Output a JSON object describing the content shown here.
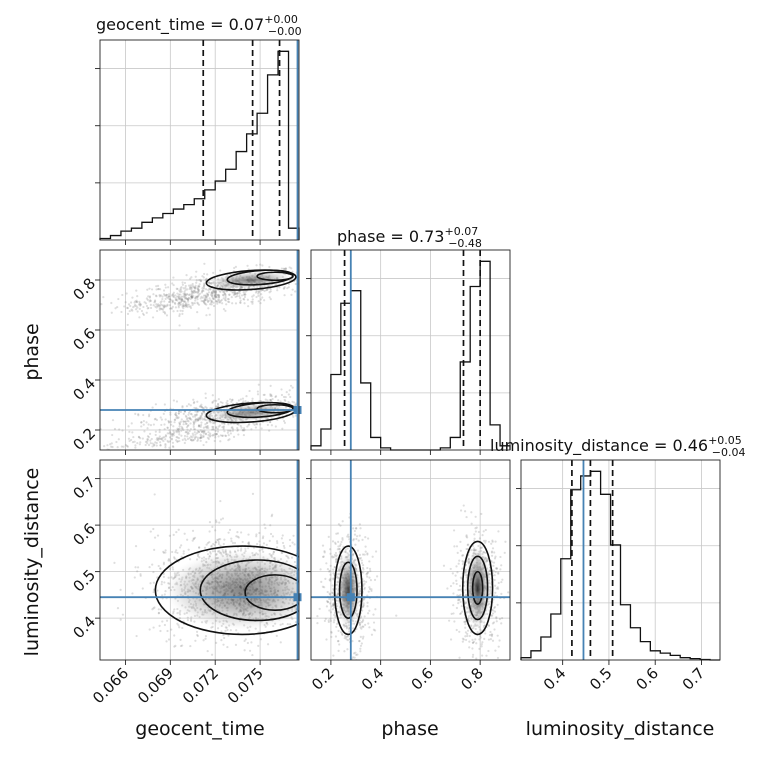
{
  "chart_data": {
    "type": "corner",
    "parameters": [
      "geocent_time",
      "phase",
      "luminosity_distance"
    ],
    "axis_labels": {
      "geocent_time": "geocent_time",
      "phase": "phase",
      "luminosity_distance": "luminosity_distance"
    },
    "ranges": {
      "geocent_time": [
        0.0643,
        0.0776
      ],
      "phase": [
        0.12,
        0.92
      ],
      "luminosity_distance": [
        0.31,
        0.74
      ]
    },
    "ticks": {
      "geocent_time": [
        "0.066",
        "0.069",
        "0.072",
        "0.075"
      ],
      "phase": [
        "0.2",
        "0.4",
        "0.6",
        "0.8"
      ],
      "luminosity_distance": [
        "0.4",
        "0.5",
        "0.6",
        "0.7"
      ]
    },
    "injected_values": {
      "geocent_time": 0.0775,
      "phase": 0.28,
      "luminosity_distance": 0.445
    },
    "titles": [
      {
        "name": "geocent_time",
        "value": "0.07",
        "plus": "+0.00",
        "minus": "−0.00"
      },
      {
        "name": "phase",
        "value": "0.73",
        "plus": "+0.07",
        "minus": "−0.48"
      },
      {
        "name": "luminosity_distance",
        "value": "0.46",
        "plus": "+0.05",
        "minus": "−0.04"
      }
    ],
    "histograms": {
      "geocent_time": {
        "bin_edges": [
          0.0643,
          0.065,
          0.0657,
          0.0664,
          0.0671,
          0.0678,
          0.0685,
          0.0692,
          0.0699,
          0.0706,
          0.0713,
          0.072,
          0.0727,
          0.0734,
          0.0741,
          0.0748,
          0.0755,
          0.0762,
          0.0769,
          0.0776
        ],
        "counts": [
          0.5,
          1.5,
          3,
          4,
          6,
          7.5,
          9,
          10.5,
          12,
          14,
          17,
          20,
          24,
          30,
          36,
          43,
          56,
          64,
          4
        ],
        "quantiles": [
          0.0712,
          0.0745,
          0.0763
        ]
      },
      "phase": {
        "bin_edges": [
          0.12,
          0.16,
          0.2,
          0.24,
          0.28,
          0.32,
          0.36,
          0.4,
          0.44,
          0.48,
          0.52,
          0.56,
          0.6,
          0.64,
          0.68,
          0.72,
          0.76,
          0.8,
          0.84,
          0.88,
          0.92
        ],
        "counts": [
          1,
          5,
          18,
          35,
          38,
          16,
          3,
          0.5,
          0,
          0,
          0,
          0,
          0,
          0.5,
          3,
          21,
          39,
          45,
          6,
          1
        ],
        "quantiles": [
          0.255,
          0.733,
          0.8
        ]
      },
      "luminosity_distance": {
        "bin_edges": [
          0.31,
          0.3315,
          0.353,
          0.3745,
          0.396,
          0.4175,
          0.439,
          0.4605,
          0.482,
          0.5035,
          0.525,
          0.5465,
          0.568,
          0.5895,
          0.611,
          0.6325,
          0.654,
          0.6755,
          0.697,
          0.7185,
          0.74
        ],
        "counts": [
          0.5,
          2,
          5,
          10,
          22,
          37,
          40,
          41,
          36,
          25,
          12,
          7,
          4,
          2,
          1.5,
          1,
          0.5,
          0.3,
          0.1,
          0
        ],
        "quantiles": [
          0.42,
          0.46,
          0.508
        ]
      }
    }
  }
}
